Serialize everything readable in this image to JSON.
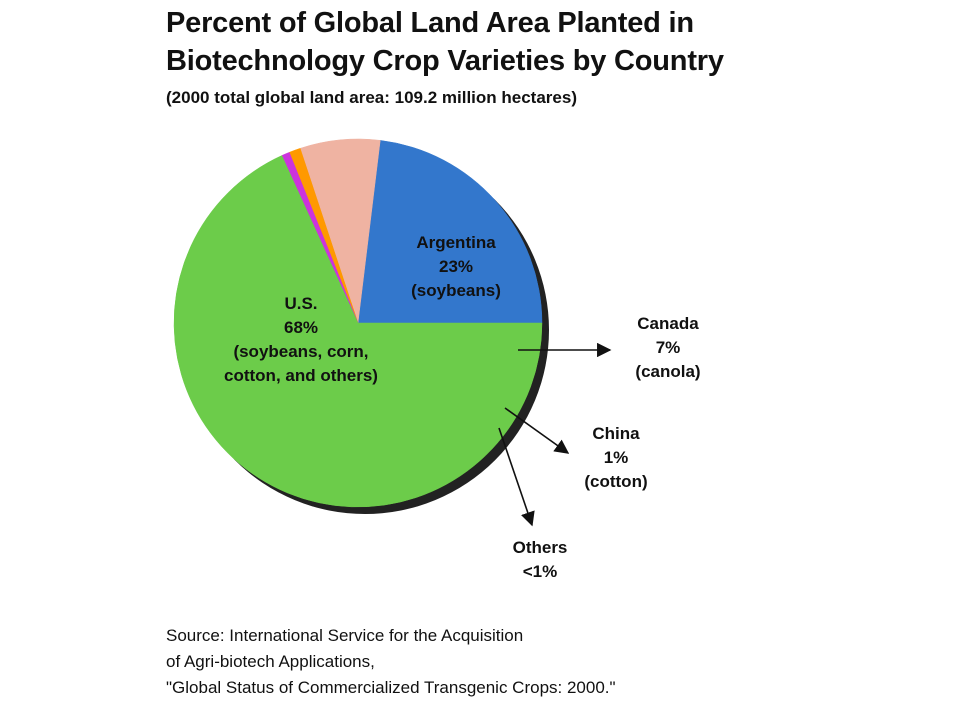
{
  "chart_data": {
    "type": "pie",
    "title_lines": [
      "Percent of Global Land Area Planted in",
      "Biotechnology Crop Varieties by Country"
    ],
    "subtitle": "(2000 total global land area: 109.2 million hectares)",
    "slices": [
      {
        "name": "Argentina",
        "value": 23,
        "display": "23%",
        "note": "(soybeans)",
        "color": "#3377cc"
      },
      {
        "name": "Canada",
        "value": 7,
        "display": "7%",
        "note": "(canola)",
        "color": "#efb3a2"
      },
      {
        "name": "China",
        "value": 1,
        "display": "1%",
        "note": "(cotton)",
        "color": "#ff9900"
      },
      {
        "name": "Others",
        "value": 0.7,
        "display": "<1%",
        "note": "",
        "color": "#cc33dd"
      },
      {
        "name": "U.S.",
        "value": 68,
        "display": "68%",
        "note": "(soybeans, corn,\ncotton, and others)",
        "color": "#6ccc4a"
      }
    ]
  },
  "source_lines": [
    "Source: International Service for the Acquisition",
    "of Agri-biotech Applications,",
    "\"Global Status of Commercialized Transgenic Crops: 2000.\""
  ]
}
